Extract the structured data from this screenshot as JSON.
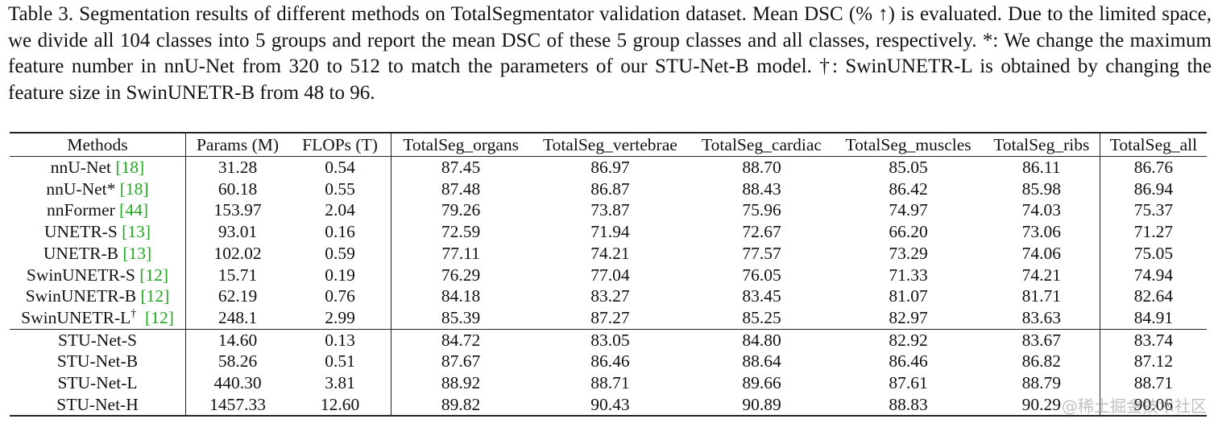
{
  "caption": {
    "text": "Table 3. Segmentation results of different methods on TotalSegmentator validation dataset. Mean DSC (% ↑) is evaluated. Due to the limited space, we divide all 104 classes into 5 groups and report the mean DSC of these 5 group classes and all classes, respectively. *: We change the maximum feature number in nnU-Net from 320 to 512 to match the parameters of our STU-Net-B model. †: SwinUNETR-L is obtained by changing the feature size in SwinUNETR-B from 48 to 96."
  },
  "table": {
    "headers": [
      "Methods",
      "Params (M)",
      "FLOPs (T)",
      "TotalSeg_organs",
      "TotalSeg_vertebrae",
      "TotalSeg_cardiac",
      "TotalSeg_muscles",
      "TotalSeg_ribs",
      "TotalSeg_all"
    ],
    "rows": [
      {
        "method": "nnU-Net",
        "sup": "",
        "ref": "[18]",
        "params": "31.28",
        "flops": "0.54",
        "organs": "87.45",
        "vertebrae": "86.97",
        "cardiac": "88.70",
        "muscles": "85.05",
        "ribs": "86.11",
        "all": "86.76"
      },
      {
        "method": "nnU-Net*",
        "sup": "",
        "ref": "[18]",
        "params": "60.18",
        "flops": "0.55",
        "organs": "87.48",
        "vertebrae": "86.87",
        "cardiac": "88.43",
        "muscles": "86.42",
        "ribs": "85.98",
        "all": "86.94"
      },
      {
        "method": "nnFormer",
        "sup": "",
        "ref": "[44]",
        "params": "153.97",
        "flops": "2.04",
        "organs": "79.26",
        "vertebrae": "73.87",
        "cardiac": "75.96",
        "muscles": "74.97",
        "ribs": "74.03",
        "all": "75.37"
      },
      {
        "method": "UNETR-S",
        "sup": "",
        "ref": "[13]",
        "params": "93.01",
        "flops": "0.16",
        "organs": "72.59",
        "vertebrae": "71.94",
        "cardiac": "72.67",
        "muscles": "66.20",
        "ribs": "73.06",
        "all": "71.27"
      },
      {
        "method": "UNETR-B",
        "sup": "",
        "ref": "[13]",
        "params": "102.02",
        "flops": "0.59",
        "organs": "77.11",
        "vertebrae": "74.21",
        "cardiac": "77.57",
        "muscles": "73.29",
        "ribs": "74.06",
        "all": "75.05"
      },
      {
        "method": "SwinUNETR-S",
        "sup": "",
        "ref": "[12]",
        "params": "15.71",
        "flops": "0.19",
        "organs": "76.29",
        "vertebrae": "77.04",
        "cardiac": "76.05",
        "muscles": "71.33",
        "ribs": "74.21",
        "all": "74.94"
      },
      {
        "method": "SwinUNETR-B",
        "sup": "",
        "ref": "[12]",
        "params": "62.19",
        "flops": "0.76",
        "organs": "84.18",
        "vertebrae": "83.27",
        "cardiac": "83.45",
        "muscles": "81.07",
        "ribs": "81.71",
        "all": "82.64"
      },
      {
        "method": "SwinUNETR-L",
        "sup": "†",
        "ref": "[12]",
        "params": "248.1",
        "flops": "2.99",
        "organs": "85.39",
        "vertebrae": "87.27",
        "cardiac": "85.25",
        "muscles": "82.97",
        "ribs": "83.63",
        "all": "84.91"
      },
      {
        "method": "STU-Net-S",
        "sup": "",
        "ref": "",
        "params": "14.60",
        "flops": "0.13",
        "organs": "84.72",
        "vertebrae": "83.05",
        "cardiac": "84.80",
        "muscles": "82.92",
        "ribs": "83.67",
        "all": "83.74"
      },
      {
        "method": "STU-Net-B",
        "sup": "",
        "ref": "",
        "params": "58.26",
        "flops": "0.51",
        "organs": "87.67",
        "vertebrae": "86.46",
        "cardiac": "88.64",
        "muscles": "86.46",
        "ribs": "86.82",
        "all": "87.12"
      },
      {
        "method": "STU-Net-L",
        "sup": "",
        "ref": "",
        "params": "440.30",
        "flops": "3.81",
        "organs": "88.92",
        "vertebrae": "88.71",
        "cardiac": "89.66",
        "muscles": "87.61",
        "ribs": "88.79",
        "all": "88.71"
      },
      {
        "method": "STU-Net-H",
        "sup": "",
        "ref": "",
        "params": "1457.33",
        "flops": "12.60",
        "organs": "89.82",
        "vertebrae": "90.43",
        "cardiac": "90.89",
        "muscles": "88.83",
        "ribs": "90.29",
        "all": "90.06"
      }
    ],
    "bold_row": "STU-Net-H"
  },
  "watermark": {
    "text": "@稀土掘金技术社区"
  }
}
